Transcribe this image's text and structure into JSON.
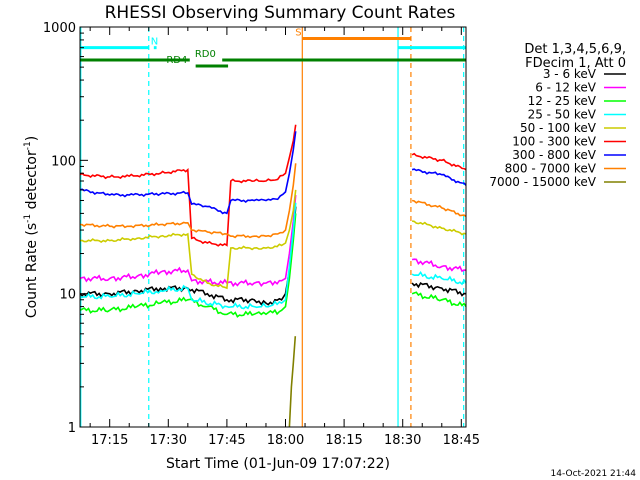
{
  "chart_data": {
    "type": "line",
    "title": "RHESSI Observing Summary Count Rates",
    "xlabel": "Start Time (01-Jun-09 17:07:22)",
    "ylabel_main": "Count Rate (s",
    "ylabel_sup1": "-1",
    "ylabel_mid": " detector",
    "ylabel_sup2": "-1",
    "ylabel_end": ")",
    "yscale": "log",
    "ylim": [
      1,
      1000
    ],
    "xlim_min": [
      1027.4,
      1126.2
    ],
    "y_ticks": [
      {
        "label": "1000",
        "value": 1000
      },
      {
        "label": "100",
        "value": 100
      },
      {
        "label": "10",
        "value": 10
      },
      {
        "label": "1",
        "value": 1
      }
    ],
    "x_ticks": [
      {
        "label": "17:15",
        "value": 1035
      },
      {
        "label": "17:30",
        "value": 1050
      },
      {
        "label": "17:45",
        "value": 1065
      },
      {
        "label": "18:00",
        "value": 1080
      },
      {
        "label": "18:15",
        "value": 1095
      },
      {
        "label": "18:30",
        "value": 1110
      },
      {
        "label": "18:45",
        "value": 1125
      }
    ],
    "legend_header": [
      "Det 1,3,4,5,6,9,",
      "FDecim 1, Att 0"
    ],
    "legend_position": "right",
    "series": [
      {
        "name": "3 - 6 keV",
        "color": "#000000",
        "points": [
          [
            1027.4,
            10
          ],
          [
            1035,
            10
          ],
          [
            1042,
            10.5
          ],
          [
            1048,
            11
          ],
          [
            1055,
            11
          ],
          [
            1060,
            10
          ],
          [
            1065,
            9
          ],
          [
            1072,
            9
          ],
          [
            1075,
            8.5
          ],
          [
            1079,
            9
          ],
          [
            1080,
            10
          ],
          [
            1081,
            15
          ],
          [
            1082,
            27
          ],
          [
            1082.6,
            45
          ],
          [
            1082.9,
            0
          ],
          [
            1112.4,
            0
          ],
          [
            1112.4,
            12
          ],
          [
            1120,
            11
          ],
          [
            1126.2,
            10
          ]
        ]
      },
      {
        "name": "6 - 12 keV",
        "color": "#ff00ff",
        "points": [
          [
            1027.4,
            13
          ],
          [
            1035,
            13
          ],
          [
            1042,
            13.5
          ],
          [
            1048,
            14.5
          ],
          [
            1055,
            15
          ],
          [
            1056,
            12.5
          ],
          [
            1065,
            12
          ],
          [
            1072,
            12
          ],
          [
            1075,
            12
          ],
          [
            1079,
            12.5
          ],
          [
            1080,
            13
          ],
          [
            1081,
            20
          ],
          [
            1082,
            35
          ],
          [
            1082.6,
            55
          ],
          [
            1082.9,
            0
          ],
          [
            1112.4,
            0
          ],
          [
            1112.4,
            18
          ],
          [
            1120,
            16
          ],
          [
            1126.2,
            15
          ]
        ]
      },
      {
        "name": "12 - 25 keV",
        "color": "#00ff00",
        "points": [
          [
            1027.4,
            7.5
          ],
          [
            1035,
            7.5
          ],
          [
            1042,
            8
          ],
          [
            1048,
            8.5
          ],
          [
            1055,
            9
          ],
          [
            1060,
            8
          ],
          [
            1065,
            7
          ],
          [
            1072,
            7
          ],
          [
            1075,
            7
          ],
          [
            1079,
            7.5
          ],
          [
            1080,
            8
          ],
          [
            1081,
            13
          ],
          [
            1082,
            25
          ],
          [
            1082.6,
            40
          ],
          [
            1082.9,
            0
          ],
          [
            1112.4,
            0
          ],
          [
            1112.4,
            10
          ],
          [
            1120,
            9
          ],
          [
            1126.2,
            8
          ]
        ]
      },
      {
        "name": "25 - 50 keV",
        "color": "#00ffff",
        "points": [
          [
            1027.4,
            9.5
          ],
          [
            1035,
            9.5
          ],
          [
            1042,
            10
          ],
          [
            1048,
            10.5
          ],
          [
            1055,
            11
          ],
          [
            1056,
            9
          ],
          [
            1065,
            8
          ],
          [
            1072,
            8
          ],
          [
            1075,
            8
          ],
          [
            1079,
            8.5
          ],
          [
            1080,
            9
          ],
          [
            1081,
            16
          ],
          [
            1082,
            30
          ],
          [
            1082.6,
            48
          ],
          [
            1082.9,
            0
          ],
          [
            1112.4,
            0
          ],
          [
            1112.4,
            14
          ],
          [
            1120,
            13
          ],
          [
            1126.2,
            12
          ]
        ]
      },
      {
        "name": "50 - 100 keV",
        "color": "#cccc00",
        "points": [
          [
            1027.4,
            25
          ],
          [
            1035,
            25
          ],
          [
            1042,
            26
          ],
          [
            1048,
            27
          ],
          [
            1055,
            28
          ],
          [
            1056,
            14
          ],
          [
            1060,
            12
          ],
          [
            1065,
            11
          ],
          [
            1066,
            22
          ],
          [
            1072,
            22
          ],
          [
            1075,
            22
          ],
          [
            1079,
            23
          ],
          [
            1080,
            24
          ],
          [
            1081,
            30
          ],
          [
            1082,
            42
          ],
          [
            1082.6,
            60
          ],
          [
            1082.9,
            0
          ],
          [
            1112.4,
            0
          ],
          [
            1112.4,
            35
          ],
          [
            1120,
            31
          ],
          [
            1126.2,
            28
          ]
        ]
      },
      {
        "name": "100 - 300 keV",
        "color": "#ff0000",
        "points": [
          [
            1027.4,
            78
          ],
          [
            1035,
            75
          ],
          [
            1040,
            76
          ],
          [
            1048,
            80
          ],
          [
            1055,
            85
          ],
          [
            1056,
            26
          ],
          [
            1060,
            24
          ],
          [
            1065,
            23
          ],
          [
            1066,
            70
          ],
          [
            1072,
            70
          ],
          [
            1075,
            70
          ],
          [
            1078,
            72
          ],
          [
            1080,
            80
          ],
          [
            1081,
            105
          ],
          [
            1082,
            140
          ],
          [
            1082.6,
            185
          ],
          [
            1082.9,
            0
          ],
          [
            1112.4,
            0
          ],
          [
            1112.4,
            110
          ],
          [
            1120,
            100
          ],
          [
            1126.2,
            85
          ]
        ]
      },
      {
        "name": "300 - 800 keV",
        "color": "#0000ff",
        "points": [
          [
            1027.4,
            60
          ],
          [
            1035,
            55
          ],
          [
            1040,
            55
          ],
          [
            1048,
            56
          ],
          [
            1055,
            57
          ],
          [
            1056,
            47
          ],
          [
            1060,
            45
          ],
          [
            1065,
            40
          ],
          [
            1066,
            50
          ],
          [
            1072,
            50
          ],
          [
            1075,
            50
          ],
          [
            1078,
            51
          ],
          [
            1080,
            58
          ],
          [
            1081,
            80
          ],
          [
            1082,
            120
          ],
          [
            1082.6,
            165
          ],
          [
            1082.9,
            0
          ],
          [
            1112.4,
            0
          ],
          [
            1112.4,
            85
          ],
          [
            1120,
            78
          ],
          [
            1126.2,
            65
          ]
        ]
      },
      {
        "name": "800 - 7000 keV",
        "color": "#ff8000",
        "points": [
          [
            1027.4,
            33
          ],
          [
            1035,
            32
          ],
          [
            1040,
            32
          ],
          [
            1048,
            33
          ],
          [
            1055,
            34
          ],
          [
            1056,
            30
          ],
          [
            1060,
            29
          ],
          [
            1065,
            28
          ],
          [
            1066,
            27
          ],
          [
            1072,
            27
          ],
          [
            1075,
            27
          ],
          [
            1078,
            28
          ],
          [
            1080,
            30
          ],
          [
            1081,
            42
          ],
          [
            1082,
            65
          ],
          [
            1082.6,
            95
          ],
          [
            1082.9,
            0
          ],
          [
            1112.4,
            0
          ],
          [
            1112.4,
            50
          ],
          [
            1120,
            44
          ],
          [
            1126.2,
            38
          ]
        ]
      },
      {
        "name": "7000 - 15000 keV",
        "color": "#808000",
        "points": [
          [
            1081,
            1
          ],
          [
            1081.5,
            2
          ],
          [
            1082,
            3
          ],
          [
            1082.5,
            4.8
          ],
          [
            1082.9,
            0
          ]
        ]
      }
    ],
    "vertical_markers": [
      {
        "x": 1027.6,
        "color": "#00ffff",
        "dashed": false,
        "from": 1,
        "to": 1000
      },
      {
        "x": 1045,
        "color": "#00ffff",
        "dashed": true,
        "from": 1,
        "to": 1000
      },
      {
        "x": 1084.3,
        "color": "#ff8000",
        "dashed": false,
        "from": 1,
        "to": 1000
      },
      {
        "x": 1108.8,
        "color": "#00ffff",
        "dashed": false,
        "from": 1,
        "to": 1000
      },
      {
        "x": 1112.1,
        "color": "#ff8000",
        "dashed": true,
        "from": 1,
        "to": 1000
      },
      {
        "x": 1125.6,
        "color": "#00ffff",
        "dashed": true,
        "from": 1,
        "to": 1000
      }
    ],
    "flag_bars": [
      {
        "label": "N",
        "color": "#00ffff",
        "y": 700,
        "segments": [
          [
            1027.4,
            1045
          ],
          [
            1046.3,
            1047
          ],
          [
            1108.8,
            1126.2
          ]
        ],
        "label_x": 1045.5
      },
      {
        "label": "S",
        "color": "#ff8000",
        "y": 820,
        "segments": [
          [
            1084.3,
            1112.1
          ]
        ],
        "label_x": 1082.5
      },
      {
        "label": "RD0",
        "color": "#008000",
        "y": 565,
        "segments": [
          [
            1027.4,
            1055.5
          ],
          [
            1063.8,
            1126.2
          ]
        ],
        "label_x": 1056.8
      },
      {
        "label": "RD4",
        "color": "#008000",
        "y": 510,
        "segments": [
          [
            1057,
            1065.3
          ]
        ],
        "label_x": 1049.5
      }
    ],
    "grid": false
  },
  "footer": {
    "date_stamp": "14-Oct-2021 21:44"
  }
}
